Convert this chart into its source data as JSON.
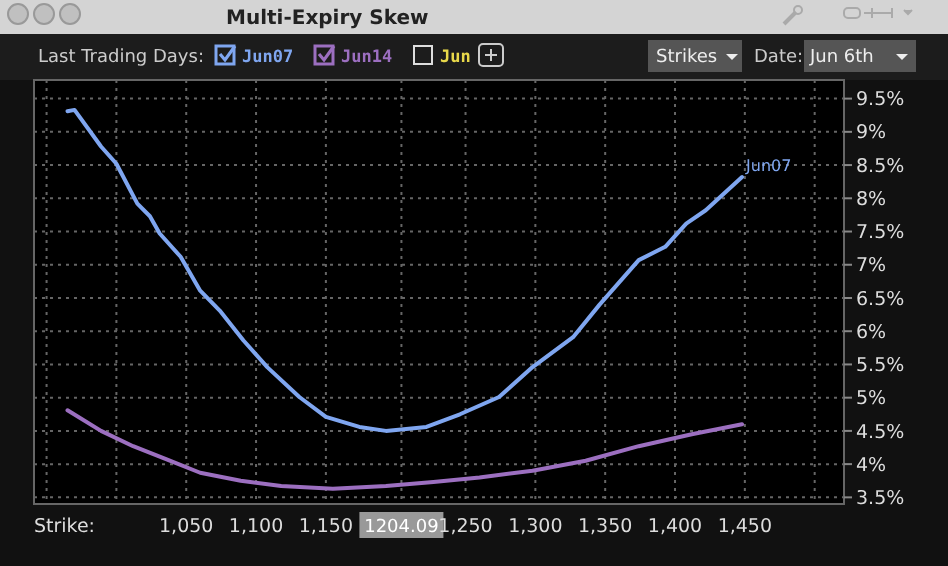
{
  "chart_data": {
    "type": "line",
    "title": "Multi-Expiry Skew",
    "legend": "top left",
    "grid": true,
    "marker": "none",
    "line_style": "solid",
    "xlim": [
      941,
      1521
    ],
    "xticks": [
      {
        "value": 950,
        "label": null
      },
      {
        "value": 1000,
        "label": null
      },
      {
        "value": 1050,
        "label": "1,050"
      },
      {
        "value": 1100,
        "label": "1,100"
      },
      {
        "value": 1150,
        "label": "1,150"
      },
      {
        "value": 1204.09,
        "label": "1204.09"
      },
      {
        "value": 1250,
        "label": "1,250"
      },
      {
        "value": 1300,
        "label": "1,300"
      },
      {
        "value": 1350,
        "label": "1,350"
      },
      {
        "value": 1400,
        "label": "1,400"
      },
      {
        "value": 1450,
        "label": "1,450"
      },
      {
        "value": 1500,
        "label": null
      }
    ],
    "ylim": [
      3.4,
      9.78
    ],
    "yticks": [
      {
        "value": 3.5,
        "label": "3.5%"
      },
      {
        "value": 4,
        "label": "4%"
      },
      {
        "value": 4.5,
        "label": "4.5%"
      },
      {
        "value": 5,
        "label": "5%"
      },
      {
        "value": 5.5,
        "label": "5.5%"
      },
      {
        "value": 6,
        "label": "6%"
      },
      {
        "value": 6.5,
        "label": "6.5%"
      },
      {
        "value": 7,
        "label": "7%"
      },
      {
        "value": 7.5,
        "label": "7.5%"
      },
      {
        "value": 8,
        "label": "8%"
      },
      {
        "value": 8.5,
        "label": "8.5%"
      },
      {
        "value": 9,
        "label": "9%"
      },
      {
        "value": 9.5,
        "label": "9.5%"
      }
    ],
    "series": [
      {
        "name": "Jun07",
        "color": "#7fa6f0",
        "x": [
          965,
          970,
          989,
          1000,
          1015,
          1024,
          1031,
          1046,
          1060,
          1074,
          1091,
          1108,
          1131,
          1150,
          1174,
          1193,
          1222,
          1246,
          1274,
          1298,
          1327,
          1346,
          1374,
          1393,
          1408,
          1422,
          1448
        ],
        "values": [
          9.31,
          9.33,
          8.78,
          8.52,
          7.92,
          7.73,
          7.47,
          7.12,
          6.61,
          6.31,
          5.86,
          5.46,
          5.01,
          4.71,
          4.56,
          4.5,
          4.56,
          4.75,
          5.01,
          5.46,
          5.91,
          6.4,
          7.07,
          7.27,
          7.62,
          7.82,
          8.32
        ]
      },
      {
        "name": "Jun14",
        "color": "#9c6fc0",
        "x": [
          965,
          989,
          1012,
          1036,
          1060,
          1089,
          1118,
          1155,
          1193,
          1227,
          1260,
          1298,
          1336,
          1374,
          1412,
          1448
        ],
        "values": [
          4.81,
          4.5,
          4.27,
          4.07,
          3.87,
          3.75,
          3.67,
          3.63,
          3.67,
          3.73,
          3.8,
          3.9,
          4.05,
          4.27,
          4.45,
          4.6
        ]
      }
    ],
    "annotations": [
      "Last Trading Days:",
      "Jun",
      "Strikes",
      "Date:",
      "Jun 6th",
      "Strike:"
    ]
  }
}
